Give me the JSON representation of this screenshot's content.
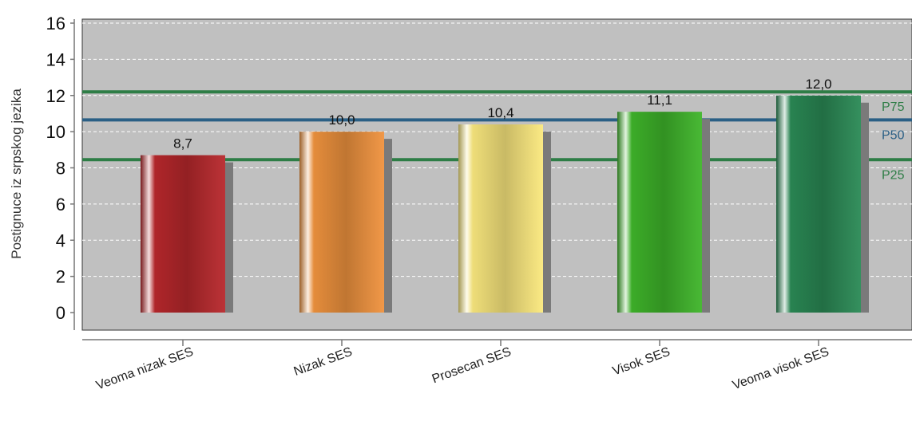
{
  "chart_data": {
    "type": "bar",
    "categories": [
      "Veoma nizak SES",
      "Nizak SES",
      "Prosecan SES",
      "Visok SES",
      "Veoma visok SES"
    ],
    "values": [
      8.7,
      10.0,
      10.4,
      11.1,
      12.0
    ],
    "value_labels": [
      "8,7",
      "10,0",
      "10,4",
      "11,1",
      "12,0"
    ],
    "ylabel": "Postignuce iz srpskog jezika",
    "xlabel": "",
    "ylim": [
      0,
      16
    ],
    "yticks": [
      0,
      2,
      4,
      6,
      8,
      10,
      12,
      14,
      16
    ],
    "grid": true,
    "bar_colors": [
      "#b8282c",
      "#f0933e",
      "#fbe97e",
      "#3fb52a",
      "#2a8a55"
    ],
    "reference_lines": [
      {
        "label": "P75",
        "value": 12.2,
        "color": "#2e7d46"
      },
      {
        "label": "P50",
        "value": 10.65,
        "color": "#2a5f85"
      },
      {
        "label": "P25",
        "value": 8.45,
        "color": "#2e7d46"
      }
    ],
    "plot_background": "#c0c0c0"
  }
}
